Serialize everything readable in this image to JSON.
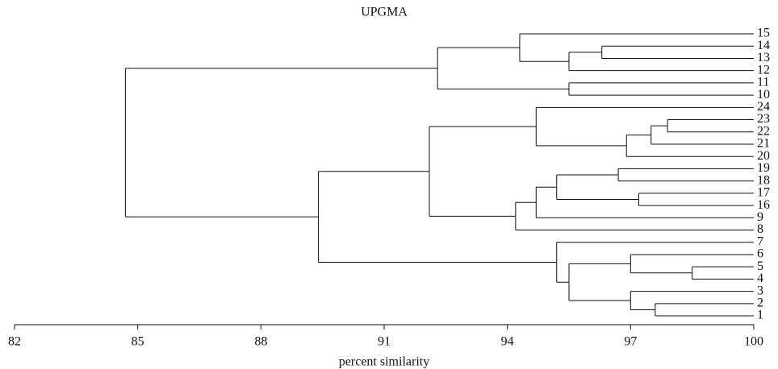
{
  "chart_data": {
    "type": "dendrogram",
    "title": "UPGMA",
    "x_label": "percent similarity",
    "xlim": [
      82,
      100
    ],
    "xticks": [
      82,
      85,
      88,
      91,
      94,
      97,
      100
    ],
    "color": "#000000",
    "tree": {
      "value": 84.7,
      "children": [
        {
          "value": 92.3,
          "children": [
            {
              "value": 94.3,
              "children": [
                {
                  "label": "15"
                },
                {
                  "value": 95.5,
                  "children": [
                    {
                      "value": 96.3,
                      "children": [
                        {
                          "label": "14"
                        },
                        {
                          "label": "13"
                        }
                      ]
                    },
                    {
                      "label": "12"
                    }
                  ]
                }
              ]
            },
            {
              "value": 95.5,
              "children": [
                {
                  "label": "11"
                },
                {
                  "label": "10"
                }
              ]
            }
          ]
        },
        {
          "value": 89.4,
          "children": [
            {
              "value": 92.1,
              "children": [
                {
                  "value": 94.7,
                  "children": [
                    {
                      "label": "24"
                    },
                    {
                      "value": 96.9,
                      "children": [
                        {
                          "value": 97.5,
                          "children": [
                            {
                              "value": 97.9,
                              "children": [
                                {
                                  "label": "23"
                                },
                                {
                                  "label": "22"
                                }
                              ]
                            },
                            {
                              "label": "21"
                            }
                          ]
                        },
                        {
                          "label": "20"
                        }
                      ]
                    }
                  ]
                },
                {
                  "value": 94.2,
                  "children": [
                    {
                      "value": 94.7,
                      "children": [
                        {
                          "value": 95.2,
                          "children": [
                            {
                              "value": 96.7,
                              "children": [
                                {
                                  "label": "19"
                                },
                                {
                                  "label": "18"
                                }
                              ]
                            },
                            {
                              "value": 97.2,
                              "children": [
                                {
                                  "label": "17"
                                },
                                {
                                  "label": "16"
                                }
                              ]
                            }
                          ]
                        },
                        {
                          "label": "9"
                        }
                      ]
                    },
                    {
                      "label": "8"
                    }
                  ]
                }
              ]
            },
            {
              "value": 95.2,
              "children": [
                {
                  "label": "7"
                },
                {
                  "value": 95.5,
                  "children": [
                    {
                      "value": 97.0,
                      "children": [
                        {
                          "label": "6"
                        },
                        {
                          "value": 98.5,
                          "children": [
                            {
                              "label": "5"
                            },
                            {
                              "label": "4"
                            }
                          ]
                        }
                      ]
                    },
                    {
                      "value": 97.0,
                      "children": [
                        {
                          "label": "3"
                        },
                        {
                          "value": 97.6,
                          "children": [
                            {
                              "label": "2"
                            },
                            {
                              "label": "1"
                            }
                          ]
                        }
                      ]
                    }
                  ]
                }
              ]
            }
          ]
        }
      ]
    }
  }
}
